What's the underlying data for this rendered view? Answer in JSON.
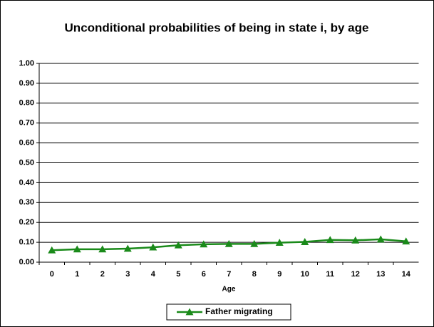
{
  "chart_data": {
    "type": "line",
    "title": "Unconditional probabilities of being in state i, by age",
    "xlabel": "Age",
    "categories": [
      "0",
      "1",
      "2",
      "3",
      "4",
      "5",
      "6",
      "7",
      "8",
      "9",
      "10",
      "11",
      "12",
      "13",
      "14"
    ],
    "series": [
      {
        "name": "Father migrating",
        "color": "#1a8a1a",
        "values": [
          0.06,
          0.065,
          0.065,
          0.068,
          0.075,
          0.085,
          0.09,
          0.092,
          0.092,
          0.098,
          0.102,
          0.112,
          0.11,
          0.115,
          0.105
        ]
      }
    ],
    "ylim": [
      0,
      1
    ],
    "yticks": [
      {
        "value": 0,
        "label": "0.00"
      },
      {
        "value": 0.1,
        "label": "0.10"
      },
      {
        "value": 0.2,
        "label": "0.20"
      },
      {
        "value": 0.3,
        "label": "0.30"
      },
      {
        "value": 0.4,
        "label": "0.40"
      },
      {
        "value": 0.5,
        "label": "0.50"
      },
      {
        "value": 0.6,
        "label": "0.60"
      },
      {
        "value": 0.7,
        "label": "0.70"
      },
      {
        "value": 0.8,
        "label": "0.80"
      },
      {
        "value": 0.9,
        "label": "0.90"
      },
      {
        "value": 1,
        "label": "1.00"
      }
    ],
    "grid": true,
    "legend": "bottom",
    "title_color": "#2ea02e"
  }
}
